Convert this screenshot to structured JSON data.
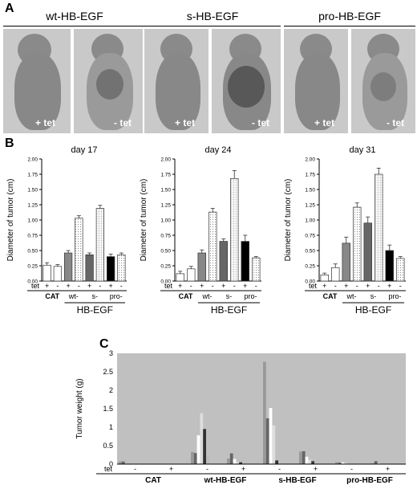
{
  "panel_a": {
    "label": "A",
    "groups": [
      {
        "title": "wt-HB-EGF",
        "left": "+ tet",
        "right": "- tet"
      },
      {
        "title": "s-HB-EGF",
        "left": "+ tet",
        "right": "- tet"
      },
      {
        "title": "pro-HB-EGF",
        "left": "+ tet",
        "right": "- tet"
      }
    ]
  },
  "panel_b": {
    "label": "B",
    "ylabel": "Diameter of tumor (cm)",
    "tet_label": "tet",
    "plus": "+",
    "minus": "-",
    "groups": [
      "CAT",
      "wt-",
      "s-",
      "pro-"
    ],
    "hb_label": "HB-EGF",
    "yticks": [
      "0.00",
      "0.25",
      "0.50",
      "0.75",
      "1.00",
      "1.25",
      "1.50",
      "1.75",
      "2.00"
    ]
  },
  "panel_c": {
    "label": "C",
    "ylabel": "Tumor weight (g)",
    "tet_label": "tet",
    "yticks": [
      "0",
      "0.5",
      "1",
      "1.5",
      "2",
      "2.5",
      "3"
    ],
    "tet_marks": [
      "-",
      "+",
      "-",
      "+",
      "-",
      "+",
      "-",
      "+"
    ],
    "groups": [
      "CAT",
      "wt-HB-EGF",
      "s-HB-EGF",
      "pro-HB-EGF"
    ]
  },
  "chart_data": [
    {
      "type": "bar",
      "title": "day 17",
      "ylabel": "Diameter of tumor (cm)",
      "ylim": [
        0,
        2
      ],
      "categories": [
        "CAT +",
        "CAT -",
        "wt- +",
        "wt- -",
        "s- +",
        "s- -",
        "pro- +",
        "pro- -"
      ],
      "values": [
        0.26,
        0.24,
        0.46,
        1.03,
        0.43,
        1.19,
        0.4,
        0.43
      ],
      "errors": [
        0.04,
        0.03,
        0.04,
        0.04,
        0.03,
        0.05,
        0.04,
        0.03
      ]
    },
    {
      "type": "bar",
      "title": "day 24",
      "ylabel": "Diameter of tumor (cm)",
      "ylim": [
        0,
        2
      ],
      "categories": [
        "CAT +",
        "CAT -",
        "wt- +",
        "wt- -",
        "s- +",
        "s- -",
        "pro- +",
        "pro- -"
      ],
      "values": [
        0.12,
        0.2,
        0.46,
        1.13,
        0.65,
        1.68,
        0.65,
        0.38
      ],
      "errors": [
        0.04,
        0.04,
        0.05,
        0.06,
        0.04,
        0.13,
        0.1,
        0.02
      ]
    },
    {
      "type": "bar",
      "title": "day 31",
      "ylabel": "Diameter of tumor (cm)",
      "ylim": [
        0,
        2
      ],
      "categories": [
        "CAT +",
        "CAT -",
        "wt- +",
        "wt- -",
        "s- +",
        "s- -",
        "pro- +",
        "pro- -"
      ],
      "values": [
        0.1,
        0.22,
        0.62,
        1.21,
        0.95,
        1.75,
        0.5,
        0.37
      ],
      "errors": [
        0.03,
        0.06,
        0.1,
        0.07,
        0.1,
        0.1,
        0.09,
        0.03
      ]
    },
    {
      "type": "bar",
      "ylabel": "Tumor weight (g)",
      "ylim": [
        0,
        3
      ],
      "clusters": [
        {
          "group": "CAT",
          "tet": "-",
          "values": [
            0.07,
            0.07
          ]
        },
        {
          "group": "CAT",
          "tet": "+",
          "values": []
        },
        {
          "group": "wt-HB-EGF",
          "tet": "-",
          "values": [
            0.33,
            0.3,
            0.78,
            1.38,
            0.95,
            0.25
          ]
        },
        {
          "group": "wt-HB-EGF",
          "tet": "+",
          "values": [
            0.15,
            0.29,
            0.14,
            0.06,
            0.05
          ]
        },
        {
          "group": "s-HB-EGF",
          "tet": "-",
          "values": [
            2.77,
            1.24,
            1.52,
            1.05,
            0.1
          ]
        },
        {
          "group": "s-HB-EGF",
          "tet": "+",
          "values": [
            0.34,
            0.35,
            0.2,
            0.12,
            0.08
          ]
        },
        {
          "group": "pro-HB-EGF",
          "tet": "-",
          "values": [
            0.05,
            0.04,
            0.05,
            0.03
          ]
        },
        {
          "group": "pro-HB-EGF",
          "tet": "+",
          "values": [
            0.02,
            0.08,
            0.02
          ]
        }
      ]
    }
  ]
}
